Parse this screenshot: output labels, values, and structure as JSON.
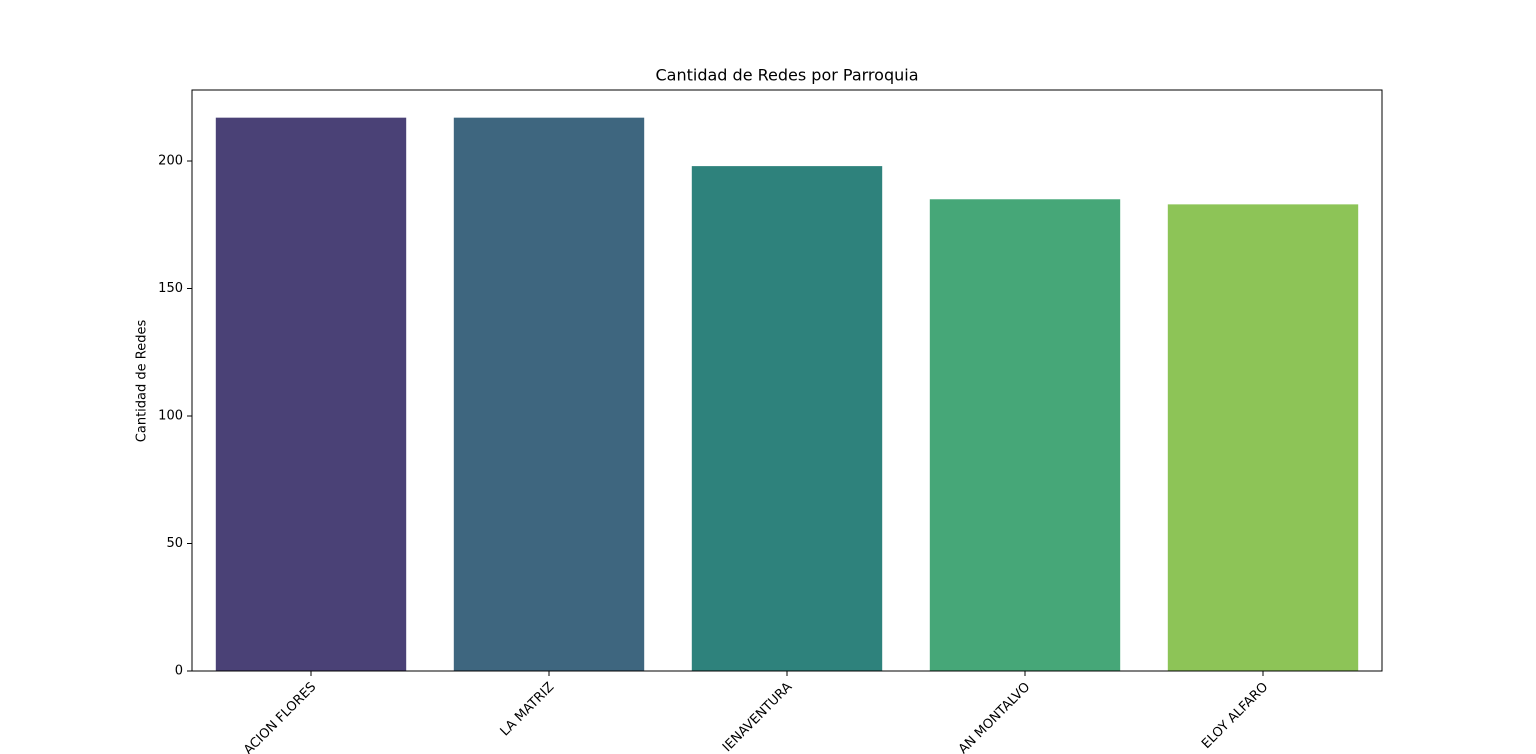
{
  "chart_data": {
    "type": "bar",
    "title": "Cantidad de Redes por Parroquia",
    "ylabel": "Cantidad de Redes",
    "categories": [
      "ACION FLORES",
      "LA MATRIZ",
      "IENAVENTURA",
      "AN MONTALVO",
      "ELOY ALFARO"
    ],
    "values": [
      217,
      217,
      198,
      185,
      183
    ],
    "colors": [
      "#4a4176",
      "#3e667f",
      "#2e827c",
      "#46a778",
      "#8dc457"
    ],
    "ylim": [
      0,
      227.85
    ],
    "yticks": [
      0,
      50,
      100,
      150,
      200
    ]
  }
}
